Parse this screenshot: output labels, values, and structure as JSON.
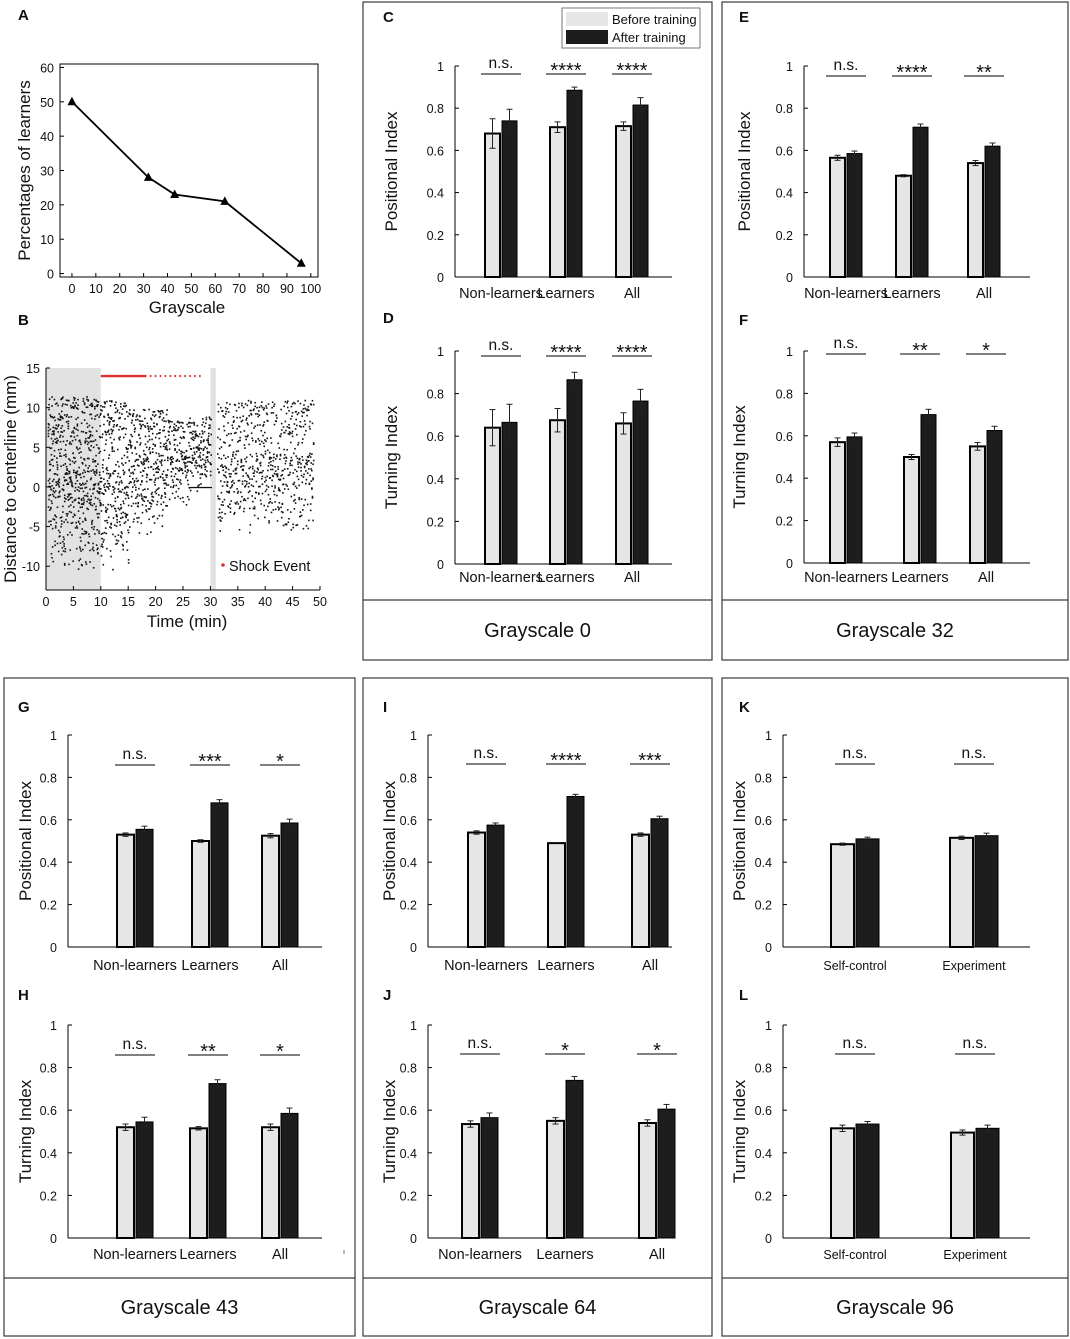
{
  "colors": {
    "before": "#e6e6e6",
    "after": "#1d1d1d",
    "shock": "#e03030",
    "frame": "#3a3a3a"
  },
  "legend": {
    "before_label": "Before training",
    "after_label": "After training"
  },
  "group_titles": [
    "Grayscale 0",
    "Grayscale 32",
    "Grayscale 43",
    "Grayscale 64",
    "Grayscale 96"
  ],
  "chart_data": [
    {
      "id": "A",
      "type": "line",
      "title": "",
      "xlabel": "Grayscale",
      "ylabel": "Percentages of learners",
      "x": [
        0,
        32,
        43,
        64,
        96
      ],
      "y": [
        50,
        28,
        23,
        21,
        3
      ],
      "xlim": [
        -5,
        103
      ],
      "ylim": [
        -1,
        61
      ],
      "xticks": [
        0,
        10,
        20,
        30,
        40,
        50,
        60,
        70,
        80,
        90,
        100
      ],
      "yticks": [
        0,
        10,
        20,
        30,
        40,
        50,
        60
      ]
    },
    {
      "id": "B",
      "type": "scatter",
      "xlabel": "Time (min)",
      "ylabel": "Distance to centerline (mm)",
      "xlim": [
        0,
        50
      ],
      "ylim": [
        -13,
        15
      ],
      "xticks": [
        0,
        5,
        10,
        15,
        20,
        25,
        30,
        35,
        40,
        45,
        50
      ],
      "yticks": [
        -10,
        -5,
        0,
        5,
        10,
        15
      ],
      "shaded_intervals": [
        [
          0,
          10
        ],
        [
          30,
          31
        ]
      ],
      "shock_y": 14,
      "shock_x_range": [
        10,
        28
      ],
      "legend": "Shock Event"
    },
    {
      "id": "C",
      "type": "bar",
      "ylabel": "Positional Index",
      "categories": [
        "Non-learners",
        "Learners",
        "All"
      ],
      "series": [
        {
          "name": "Before training",
          "values": [
            0.68,
            0.71,
            0.715
          ],
          "errors": [
            0.07,
            0.025,
            0.02
          ]
        },
        {
          "name": "After training",
          "values": [
            0.74,
            0.885,
            0.815
          ],
          "errors": [
            0.055,
            0.015,
            0.035
          ]
        }
      ],
      "significance": [
        "n.s.",
        "****",
        "****"
      ],
      "ylim": [
        0,
        1
      ],
      "yticks": [
        0,
        0.2,
        0.4,
        0.6,
        0.8,
        1
      ]
    },
    {
      "id": "D",
      "type": "bar",
      "ylabel": "Turning Index",
      "categories": [
        "Non-learners",
        "Learners",
        "All"
      ],
      "series": [
        {
          "name": "Before training",
          "values": [
            0.64,
            0.675,
            0.66
          ],
          "errors": [
            0.085,
            0.055,
            0.05
          ]
        },
        {
          "name": "After training",
          "values": [
            0.665,
            0.865,
            0.765
          ],
          "errors": [
            0.085,
            0.035,
            0.055
          ]
        }
      ],
      "significance": [
        "n.s.",
        "****",
        "****"
      ],
      "ylim": [
        0,
        1
      ],
      "yticks": [
        0,
        0.2,
        0.4,
        0.6,
        0.8,
        1
      ]
    },
    {
      "id": "E",
      "type": "bar",
      "ylabel": "Positional Index",
      "categories": [
        "Non-learners",
        "Learners",
        "All"
      ],
      "series": [
        {
          "name": "Before training",
          "values": [
            0.565,
            0.48,
            0.54
          ],
          "errors": [
            0.012,
            0.005,
            0.012
          ]
        },
        {
          "name": "After training",
          "values": [
            0.585,
            0.71,
            0.62
          ],
          "errors": [
            0.012,
            0.015,
            0.015
          ]
        }
      ],
      "significance": [
        "n.s.",
        "****",
        "**"
      ],
      "ylim": [
        0,
        1
      ],
      "yticks": [
        0,
        0.2,
        0.4,
        0.6,
        0.8,
        1
      ]
    },
    {
      "id": "F",
      "type": "bar",
      "ylabel": "Turning Index",
      "categories": [
        "Non-learners",
        "Learners",
        "All"
      ],
      "series": [
        {
          "name": "Before training",
          "values": [
            0.57,
            0.5,
            0.55
          ],
          "errors": [
            0.02,
            0.012,
            0.018
          ]
        },
        {
          "name": "After training",
          "values": [
            0.595,
            0.7,
            0.625
          ],
          "errors": [
            0.018,
            0.025,
            0.02
          ]
        }
      ],
      "significance": [
        "n.s.",
        "**",
        "*"
      ],
      "ylim": [
        0,
        1
      ],
      "yticks": [
        0,
        0.2,
        0.4,
        0.6,
        0.8,
        1
      ]
    },
    {
      "id": "G",
      "type": "bar",
      "ylabel": "Positional Index",
      "categories": [
        "Non-learners",
        "Learners",
        "All"
      ],
      "series": [
        {
          "name": "Before training",
          "values": [
            0.53,
            0.5,
            0.525
          ],
          "errors": [
            0.008,
            0.006,
            0.01
          ]
        },
        {
          "name": "After training",
          "values": [
            0.555,
            0.68,
            0.585
          ],
          "errors": [
            0.015,
            0.015,
            0.018
          ]
        }
      ],
      "significance": [
        "n.s.",
        "***",
        "*"
      ],
      "ylim": [
        0,
        1
      ],
      "yticks": [
        0,
        0.2,
        0.4,
        0.6,
        0.8,
        1
      ]
    },
    {
      "id": "H",
      "type": "bar",
      "ylabel": "Turning Index",
      "categories": [
        "Non-learners",
        "Learners",
        "All"
      ],
      "series": [
        {
          "name": "Before training",
          "values": [
            0.52,
            0.515,
            0.52
          ],
          "errors": [
            0.015,
            0.008,
            0.015
          ]
        },
        {
          "name": "After training",
          "values": [
            0.545,
            0.725,
            0.585
          ],
          "errors": [
            0.022,
            0.018,
            0.025
          ]
        }
      ],
      "significance": [
        "n.s.",
        "**",
        "*"
      ],
      "ylim": [
        0,
        1
      ],
      "yticks": [
        0,
        0.2,
        0.4,
        0.6,
        0.8,
        1
      ]
    },
    {
      "id": "I",
      "type": "bar",
      "ylabel": "Positional Index",
      "categories": [
        "Non-learners",
        "Learners",
        "All"
      ],
      "series": [
        {
          "name": "Before training",
          "values": [
            0.54,
            0.49,
            0.53
          ],
          "errors": [
            0.008,
            0.0,
            0.008
          ]
        },
        {
          "name": "After training",
          "values": [
            0.575,
            0.71,
            0.605
          ],
          "errors": [
            0.01,
            0.01,
            0.012
          ]
        }
      ],
      "significance": [
        "n.s.",
        "****",
        "***"
      ],
      "ylim": [
        0,
        1
      ],
      "yticks": [
        0,
        0.2,
        0.4,
        0.6,
        0.8,
        1
      ]
    },
    {
      "id": "J",
      "type": "bar",
      "ylabel": "Turning Index",
      "categories": [
        "Non-learners",
        "Learners",
        "All"
      ],
      "series": [
        {
          "name": "Before training",
          "values": [
            0.535,
            0.55,
            0.54
          ],
          "errors": [
            0.015,
            0.015,
            0.015
          ]
        },
        {
          "name": "After training",
          "values": [
            0.565,
            0.74,
            0.605
          ],
          "errors": [
            0.022,
            0.018,
            0.022
          ]
        }
      ],
      "significance": [
        "n.s.",
        "*",
        "*"
      ],
      "ylim": [
        0,
        1
      ],
      "yticks": [
        0,
        0.2,
        0.4,
        0.6,
        0.8,
        1
      ]
    },
    {
      "id": "K",
      "type": "bar",
      "ylabel": "Positional Index",
      "categories": [
        "Self-control",
        "Experiment"
      ],
      "series": [
        {
          "name": "Before training",
          "values": [
            0.485,
            0.515
          ],
          "errors": [
            0.005,
            0.008
          ]
        },
        {
          "name": "After training",
          "values": [
            0.51,
            0.525
          ],
          "errors": [
            0.008,
            0.012
          ]
        }
      ],
      "significance": [
        "n.s.",
        "n.s."
      ],
      "ylim": [
        0,
        1
      ],
      "yticks": [
        0,
        0.2,
        0.4,
        0.6,
        0.8,
        1
      ]
    },
    {
      "id": "L",
      "type": "bar",
      "ylabel": "Turning Index",
      "categories": [
        "Self-control",
        "Experiment"
      ],
      "series": [
        {
          "name": "Before training",
          "values": [
            0.515,
            0.495
          ],
          "errors": [
            0.015,
            0.012
          ]
        },
        {
          "name": "After training",
          "values": [
            0.535,
            0.515
          ],
          "errors": [
            0.012,
            0.015
          ]
        }
      ],
      "significance": [
        "n.s.",
        "n.s."
      ],
      "ylim": [
        0,
        1
      ],
      "yticks": [
        0,
        0.2,
        0.4,
        0.6,
        0.8,
        1
      ]
    }
  ]
}
